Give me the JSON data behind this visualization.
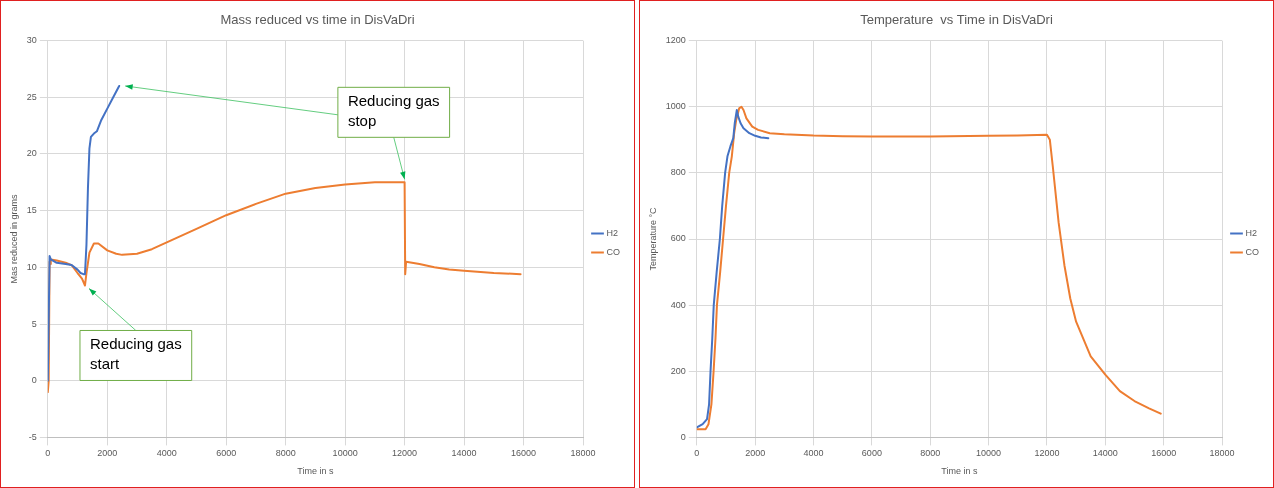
{
  "chart_data": [
    {
      "type": "line",
      "title": "Mass reduced vs time in DisVaDri",
      "xlabel": "Time in s",
      "ylabel": "Mas reduced in grams",
      "xlim": [
        0,
        18000
      ],
      "xticks": [
        0,
        2000,
        4000,
        6000,
        8000,
        10000,
        12000,
        14000,
        16000,
        18000
      ],
      "ylim": [
        -5,
        30
      ],
      "yticks": [
        -5,
        0,
        5,
        10,
        15,
        20,
        25,
        30
      ],
      "grid": true,
      "legend": "right",
      "marker": "none",
      "line_style": "solid",
      "series": [
        {
          "name": "H2",
          "color": "#4472c4",
          "x": [
            0,
            60,
            100,
            300,
            600,
            800,
            1000,
            1100,
            1200,
            1250,
            1300,
            1350,
            1400,
            1450,
            1550,
            1650,
            1800,
            2000,
            2200,
            2400
          ],
          "values": [
            0,
            11,
            10.7,
            10.4,
            10.3,
            10.2,
            9.8,
            9.5,
            9.4,
            9.4,
            12,
            17,
            20.5,
            21.5,
            21.8,
            22,
            23,
            24,
            25,
            26
          ]
        },
        {
          "name": "CO",
          "color": "#ed7d31",
          "x": [
            0,
            30,
            60,
            80,
            100,
            300,
            600,
            800,
            1000,
            1150,
            1250,
            1300,
            1400,
            1550,
            1700,
            2000,
            2300,
            2500,
            3000,
            3500,
            4000,
            5000,
            6000,
            7000,
            8000,
            9000,
            10000,
            11000,
            11500,
            12000,
            12020,
            12050,
            12500,
            13000,
            13500,
            14000,
            15000,
            15900
          ],
          "values": [
            -1,
            0,
            10.5,
            10.3,
            10.7,
            10.6,
            10.4,
            10.2,
            9.5,
            9,
            8.4,
            9.5,
            11.3,
            12.1,
            12.1,
            11.5,
            11.2,
            11.1,
            11.2,
            11.6,
            12.2,
            13.4,
            14.6,
            15.6,
            16.5,
            17,
            17.3,
            17.5,
            17.5,
            17.5,
            9.4,
            10.5,
            10.3,
            10,
            9.8,
            9.7,
            9.5,
            9.4
          ]
        }
      ],
      "annotations": [
        {
          "text": "Reducing gas start",
          "x": 1250,
          "y": 8.4
        },
        {
          "text": "Reducing gas stop",
          "x": 12000,
          "y": 17.5
        }
      ]
    },
    {
      "type": "line",
      "title": "Temperature  vs Time in DisVaDri",
      "xlabel": "Time in s",
      "ylabel": "Temperature °C",
      "xlim": [
        0,
        18000
      ],
      "xticks": [
        0,
        2000,
        4000,
        6000,
        8000,
        10000,
        12000,
        14000,
        16000,
        18000
      ],
      "ylim": [
        0,
        1200
      ],
      "yticks": [
        0,
        200,
        400,
        600,
        800,
        1000,
        1200
      ],
      "grid": true,
      "legend": "right",
      "marker": "none",
      "line_style": "solid",
      "series": [
        {
          "name": "H2",
          "color": "#4472c4",
          "x": [
            0,
            200,
            350,
            420,
            470,
            530,
            580,
            680,
            790,
            870,
            970,
            1050,
            1150,
            1250,
            1300,
            1370,
            1420,
            1500,
            1600,
            1800,
            2000,
            2200,
            2450
          ],
          "values": [
            30,
            40,
            55,
            100,
            200,
            300,
            400,
            500,
            600,
            700,
            800,
            850,
            880,
            905,
            950,
            990,
            970,
            950,
            935,
            920,
            912,
            907,
            905
          ]
        },
        {
          "name": "CO",
          "color": "#ed7d31",
          "x": [
            0,
            300,
            400,
            500,
            575,
            640,
            690,
            800,
            900,
            1000,
            1110,
            1200,
            1280,
            1350,
            1450,
            1530,
            1600,
            1700,
            1900,
            2100,
            2500,
            3000,
            4000,
            5000,
            6000,
            8000,
            10000,
            11000,
            12000,
            12100,
            12200,
            12400,
            12600,
            12800,
            13000,
            13500,
            14000,
            14500,
            15000,
            15500,
            15900
          ],
          "values": [
            25,
            25,
            40,
            100,
            200,
            300,
            400,
            500,
            600,
            700,
            800,
            850,
            920,
            960,
            995,
            1000,
            990,
            965,
            940,
            930,
            920,
            917,
            913,
            911,
            910,
            910,
            912,
            913,
            915,
            900,
            820,
            650,
            520,
            420,
            350,
            245,
            190,
            140,
            110,
            88,
            72
          ]
        }
      ]
    }
  ]
}
